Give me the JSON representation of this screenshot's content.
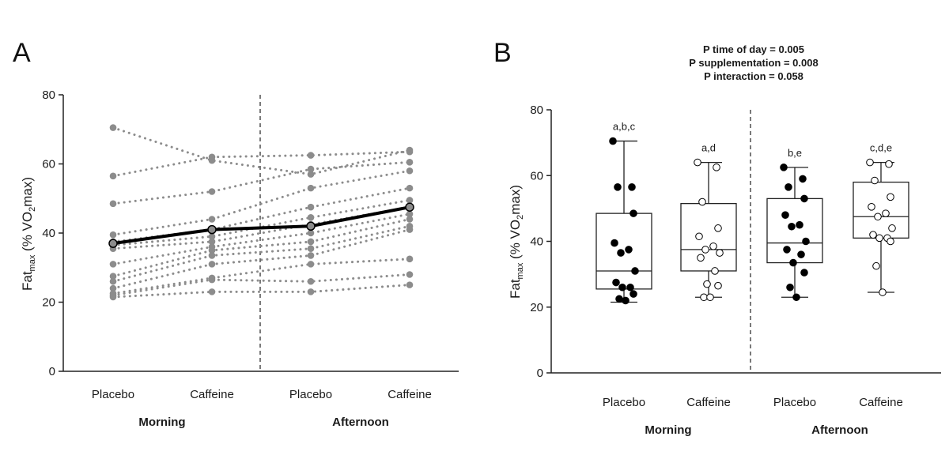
{
  "chart_data": [
    {
      "panel": "A",
      "type": "line",
      "ylabel": {
        "main": "Fat",
        "sub": "max",
        "rest": " (% VO",
        "sub2": "2",
        "end": "max)"
      },
      "ylim": [
        0,
        80
      ],
      "yticks": [
        "0",
        "20",
        "40",
        "60",
        "80"
      ],
      "categories": [
        "Placebo",
        "Caffeine",
        "Placebo",
        "Caffeine"
      ],
      "groups": [
        "Morning",
        "Afternoon"
      ],
      "color_individual": "#8c8c8c",
      "color_mean": "#000000",
      "mean_series": [
        37,
        41,
        42,
        47.5
      ],
      "individual_series": [
        [
          70.5,
          61,
          57,
          64
        ],
        [
          56.5,
          62,
          62.5,
          63.5
        ],
        [
          48.5,
          52,
          58.5,
          60.5
        ],
        [
          39.5,
          44,
          53,
          58
        ],
        [
          37.5,
          41,
          47.5,
          53
        ],
        [
          36.5,
          39,
          44.5,
          49.5
        ],
        [
          35.5,
          37.5,
          42.5,
          47.5
        ],
        [
          31,
          36,
          40,
          45.5
        ],
        [
          27.5,
          35,
          37.5,
          44
        ],
        [
          26,
          33.5,
          35.5,
          42
        ],
        [
          24,
          31,
          33.5,
          41
        ],
        [
          22.5,
          27,
          31,
          32.5
        ],
        [
          22,
          26.5,
          26,
          28
        ],
        [
          21.5,
          23,
          23,
          25
        ]
      ]
    },
    {
      "panel": "B",
      "type": "box",
      "title_lines": [
        "P time of day = 0.005",
        "P supplementation = 0.008",
        "P interaction = 0.058"
      ],
      "ylabel": {
        "main": "Fat",
        "sub": "max",
        "rest": " (% VO",
        "sub2": "2",
        "end": "max)"
      },
      "ylim": [
        0,
        80
      ],
      "yticks": [
        "0",
        "20",
        "40",
        "60",
        "80"
      ],
      "categories": [
        "Placebo",
        "Caffeine",
        "Placebo",
        "Caffeine"
      ],
      "groups": [
        "Morning",
        "Afternoon"
      ],
      "boxes": [
        {
          "label": "a,b,c",
          "min": 21.5,
          "q1": 25.5,
          "median": 31,
          "q3": 48.5,
          "max": 70.5,
          "filled": true,
          "points": [
            70.5,
            56.5,
            56.5,
            48.5,
            39.5,
            37.5,
            36.5,
            31,
            27.5,
            26,
            26,
            24,
            22.5,
            22
          ]
        },
        {
          "label": "a,d",
          "min": 23,
          "q1": 31,
          "median": 37.5,
          "q3": 51.5,
          "max": 64,
          "filled": false,
          "points": [
            64,
            62.5,
            52,
            44,
            41.5,
            38.5,
            37.5,
            36.5,
            35,
            31,
            27,
            26.5,
            23,
            23
          ]
        },
        {
          "label": "b,e",
          "min": 23,
          "q1": 33.5,
          "median": 39.5,
          "q3": 53,
          "max": 62.5,
          "filled": true,
          "points": [
            62.5,
            59,
            56.5,
            53,
            48,
            45,
            44.5,
            40,
            37.5,
            36,
            33.5,
            30.5,
            26,
            23
          ]
        },
        {
          "label": "c,d,e",
          "min": 24.5,
          "q1": 41,
          "median": 47.5,
          "q3": 58,
          "max": 64,
          "filled": false,
          "points": [
            64,
            63.5,
            58.5,
            53.5,
            50.5,
            48.5,
            47.5,
            44,
            42,
            41,
            41,
            40,
            32.5,
            24.5
          ]
        }
      ]
    }
  ]
}
